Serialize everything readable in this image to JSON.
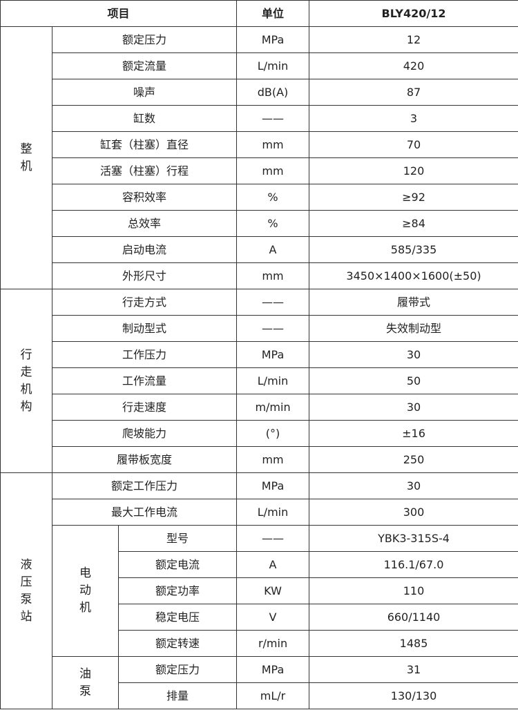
{
  "header": {
    "item": "项目",
    "unit": "单位",
    "model": "BLY420/12"
  },
  "groups": {
    "machine": {
      "label": "整机",
      "rows": [
        {
          "name": "额定压力",
          "unit": "MPa",
          "value": "12"
        },
        {
          "name": "额定流量",
          "unit": "L/min",
          "value": "420"
        },
        {
          "name": "噪声",
          "unit": "dB(A)",
          "value": "87"
        },
        {
          "name": "缸数",
          "unit": "——",
          "value": "3"
        },
        {
          "name": "缸套（柱塞）直径",
          "unit": "mm",
          "value": "70"
        },
        {
          "name": "活塞（柱塞）行程",
          "unit": "mm",
          "value": "120"
        },
        {
          "name": "容积效率",
          "unit": "%",
          "value": "≥92"
        },
        {
          "name": "总效率",
          "unit": "%",
          "value": "≥84"
        },
        {
          "name": "启动电流",
          "unit": "A",
          "value": "585/335"
        },
        {
          "name": "外形尺寸",
          "unit": "mm",
          "value": "3450×1400×1600(±50)"
        }
      ]
    },
    "travel": {
      "label": "行走机构",
      "rows": [
        {
          "name": "行走方式",
          "unit": "——",
          "value": "履带式"
        },
        {
          "name": "制动型式",
          "unit": "——",
          "value": "失效制动型"
        },
        {
          "name": "工作压力",
          "unit": "MPa",
          "value": "30"
        },
        {
          "name": "工作流量",
          "unit": "L/min",
          "value": "50"
        },
        {
          "name": "行走速度",
          "unit": "m/min",
          "value": "30"
        },
        {
          "name": "爬坡能力",
          "unit": "(°)",
          "value": "±16"
        },
        {
          "name": "履带板宽度",
          "unit": "mm",
          "value": "250"
        }
      ]
    },
    "pump_station": {
      "label": "液压泵站",
      "rows": [
        {
          "name": "额定工作压力",
          "unit": "MPa",
          "value": "30"
        },
        {
          "name": "最大工作电流",
          "unit": "L/min",
          "value": "300"
        }
      ],
      "motor": {
        "label": "电动机",
        "rows": [
          {
            "name": "型号",
            "unit": "——",
            "value": "YBK3-315S-4"
          },
          {
            "name": "额定电流",
            "unit": "A",
            "value": "116.1/67.0"
          },
          {
            "name": "额定功率",
            "unit": "KW",
            "value": "110"
          },
          {
            "name": "稳定电压",
            "unit": "V",
            "value": "660/1140"
          },
          {
            "name": "额定转速",
            "unit": "r/min",
            "value": "1485"
          }
        ]
      },
      "oil_pump": {
        "label": "油泵",
        "rows": [
          {
            "name": "额定压力",
            "unit": "MPa",
            "value": "31"
          },
          {
            "name": "排量",
            "unit": "mL/r",
            "value": "130/130"
          }
        ]
      }
    }
  }
}
